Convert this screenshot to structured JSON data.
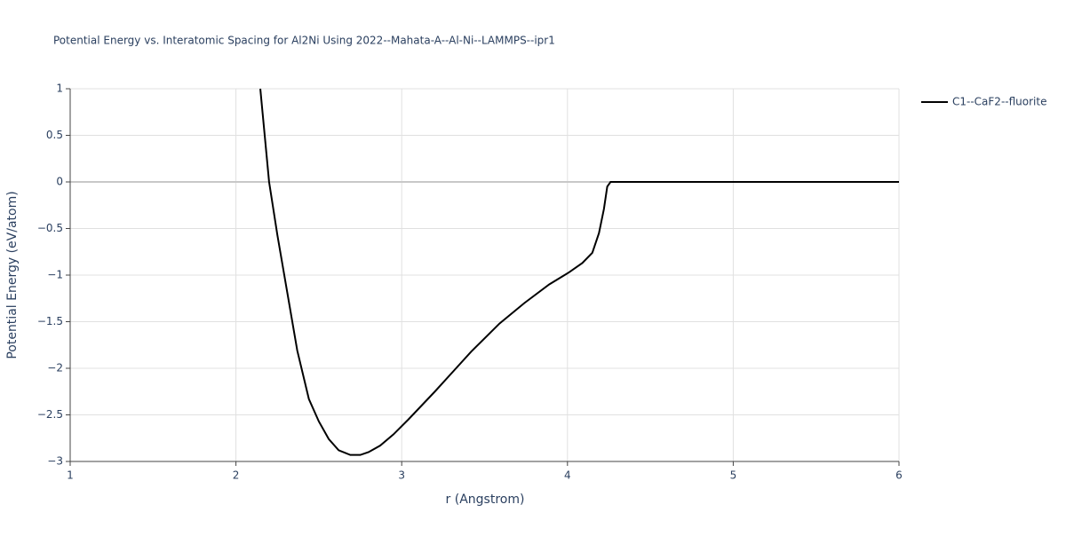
{
  "chart_data": {
    "type": "line",
    "title": "Potential Energy vs. Interatomic Spacing for Al2Ni Using 2022--Mahata-A--Al-Ni--LAMMPS--ipr1",
    "x_label": "r (Angstrom)",
    "y_label": "Potential Energy (eV/atom)",
    "xlim": [
      1,
      6
    ],
    "xticks": [
      1,
      2,
      3,
      4,
      5,
      6
    ],
    "ylim": [
      -3,
      1
    ],
    "yticks": [
      1,
      0.5,
      0,
      {
        "value": -0.5,
        "label": "−0.5"
      },
      {
        "value": -1,
        "label": "−1"
      },
      {
        "value": -1.5,
        "label": "−1.5"
      },
      {
        "value": -2,
        "label": "−2"
      },
      {
        "value": -2.5,
        "label": "−2.5"
      },
      {
        "value": -3,
        "label": "−3"
      }
    ],
    "grid": true,
    "legend": "top-right",
    "series": [
      {
        "name": "C1--CaF2--fluorite",
        "color": "#000000",
        "x": [
          2.147,
          2.2,
          2.25,
          2.31,
          2.37,
          2.44,
          2.5,
          2.56,
          2.62,
          2.69,
          2.75,
          2.8,
          2.87,
          2.95,
          3.04,
          3.2,
          3.42,
          3.59,
          3.74,
          3.89,
          4.01,
          4.09,
          4.15,
          4.19,
          4.22,
          4.24,
          4.26,
          6.0
        ],
        "values": [
          1.0,
          0.0,
          -0.57,
          -1.19,
          -1.81,
          -2.33,
          -2.57,
          -2.76,
          -2.88,
          -2.93,
          -2.93,
          -2.9,
          -2.83,
          -2.71,
          -2.55,
          -2.25,
          -1.82,
          -1.52,
          -1.3,
          -1.1,
          -0.97,
          -0.87,
          -0.76,
          -0.55,
          -0.29,
          -0.05,
          0.0,
          0.0
        ]
      }
    ]
  }
}
